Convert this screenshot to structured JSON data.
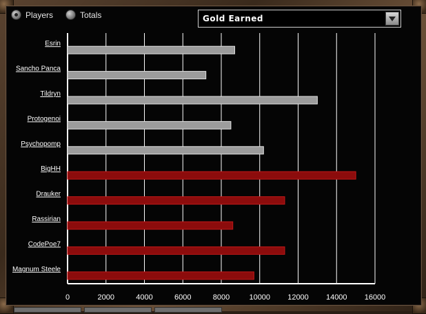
{
  "view_toggle": {
    "players_label": "Players",
    "totals_label": "Totals",
    "selected": "Players"
  },
  "stat_select": {
    "value": "Gold Earned"
  },
  "colors": {
    "team_a": "#9c9c9c",
    "team_b": "#8c0c0c",
    "grid": "#ffffff"
  },
  "chart_data": {
    "type": "bar",
    "orientation": "horizontal",
    "title": "",
    "xlabel": "",
    "ylabel": "",
    "xlim": [
      0,
      16000
    ],
    "x_ticks": [
      "0",
      "2000",
      "4000",
      "6000",
      "8000",
      "10000",
      "12000",
      "14000",
      "16000"
    ],
    "grid": true,
    "categories": [
      "Esrin",
      "Sancho Panca",
      "Tildryn",
      "Protogenoi",
      "Psychopomp",
      "BigHH",
      "Drauker",
      "Rassirian",
      "CodePoe7",
      "Magnum Steele"
    ],
    "values": [
      8700,
      7200,
      13000,
      8500,
      10200,
      15000,
      11300,
      8600,
      11300,
      9700
    ],
    "bar_colors": [
      "#9c9c9c",
      "#9c9c9c",
      "#9c9c9c",
      "#9c9c9c",
      "#9c9c9c",
      "#8c0c0c",
      "#8c0c0c",
      "#8c0c0c",
      "#8c0c0c",
      "#8c0c0c"
    ]
  }
}
